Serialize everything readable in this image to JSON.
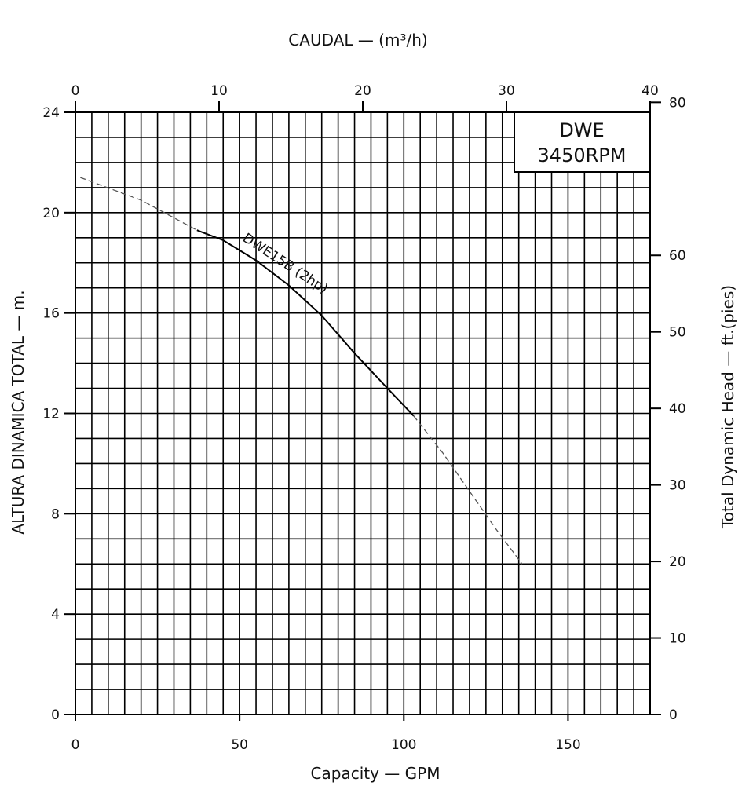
{
  "chart_data": {
    "type": "line",
    "box_title_line1": "DWE",
    "box_title_line2": "3450RPM",
    "x_bottom": {
      "label": "Capacity — GPM",
      "range": [
        0,
        175
      ],
      "ticks": [
        0,
        50,
        100,
        150
      ]
    },
    "x_top": {
      "label": "CAUDAL — (m³/h)",
      "range": [
        0,
        40
      ],
      "ticks": [
        0,
        10,
        20,
        30,
        40
      ]
    },
    "y_left": {
      "label": "ALTURA DINAMICA TOTAL — m.",
      "range": [
        0,
        24
      ],
      "ticks": [
        0,
        4,
        8,
        12,
        16,
        20,
        24
      ]
    },
    "y_right": {
      "label": "Total Dynamic Head — ft.(pies)",
      "range": [
        0,
        78.7
      ],
      "ticks": [
        0,
        10,
        20,
        30,
        40,
        50,
        60,
        80
      ]
    },
    "grid": true,
    "series": [
      {
        "name": "DWE15B (2hp)",
        "dashed_start": [
          [
            1.5,
            21.4
          ],
          [
            20,
            20.5
          ],
          [
            37,
            19.3
          ]
        ],
        "solid": [
          [
            37,
            19.3
          ],
          [
            45,
            18.9
          ],
          [
            55,
            18.1
          ],
          [
            65,
            17.1
          ],
          [
            75,
            15.9
          ],
          [
            85,
            14.4
          ],
          [
            95,
            13.0
          ],
          [
            103,
            11.9
          ]
        ],
        "dashed_end": [
          [
            103,
            11.9
          ],
          [
            112,
            10.4
          ],
          [
            120,
            8.9
          ],
          [
            128,
            7.4
          ],
          [
            136,
            6.0
          ]
        ]
      }
    ]
  }
}
